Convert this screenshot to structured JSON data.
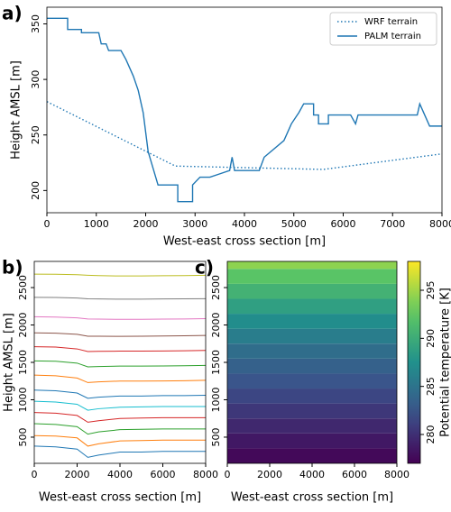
{
  "chart_data": [
    {
      "type": "line",
      "panel_label": "a)",
      "xlabel": "West-east cross section [m]",
      "ylabel": "Height AMSL [m]",
      "xlim": [
        0,
        8000
      ],
      "ylim": [
        180,
        365
      ],
      "xticks": [
        0,
        1000,
        2000,
        3000,
        4000,
        5000,
        6000,
        7000,
        8000
      ],
      "yticks": [
        200,
        250,
        300,
        350
      ],
      "legend": "upper right",
      "series": [
        {
          "name": "WRF terrain",
          "color": "#1f77b4",
          "linestyle": "dotted",
          "x": [
            0,
            2600,
            5600,
            8000
          ],
          "values": [
            280,
            222,
            219,
            233
          ]
        },
        {
          "name": "PALM terrain",
          "color": "#1f77b4",
          "linestyle": "solid",
          "x": [
            0,
            420,
            420,
            700,
            700,
            1050,
            1100,
            1200,
            1250,
            1500,
            1600,
            1750,
            1850,
            1950,
            2050,
            2150,
            2250,
            2650,
            2650,
            2950,
            2950,
            3100,
            3300,
            3500,
            3700,
            3750,
            3800,
            4300,
            4400,
            4800,
            4950,
            5100,
            5200,
            5400,
            5400,
            5500,
            5500,
            5700,
            5700,
            6150,
            6250,
            6300,
            7500,
            7550,
            7650,
            7750,
            8000
          ],
          "values": [
            355,
            355,
            345,
            345,
            342,
            342,
            332,
            332,
            326,
            326,
            318,
            303,
            290,
            270,
            235,
            220,
            205,
            205,
            190,
            190,
            205,
            212,
            212,
            215,
            218,
            230,
            218,
            218,
            230,
            245,
            260,
            270,
            278,
            278,
            268,
            268,
            260,
            260,
            268,
            268,
            260,
            268,
            268,
            278,
            268,
            258,
            258
          ]
        }
      ]
    },
    {
      "type": "line",
      "panel_label": "b)",
      "xlabel": "West-east cross section [m]",
      "ylabel": "Height AMSL [m]",
      "xlim": [
        0,
        8000
      ],
      "ylim": [
        150,
        2850
      ],
      "xticks": [
        0,
        2000,
        4000,
        6000,
        8000
      ],
      "yticks": [
        500,
        1000,
        1500,
        2000,
        2500
      ],
      "x": [
        0,
        1000,
        2000,
        2500,
        3000,
        4000,
        5000,
        6000,
        7000,
        8000
      ],
      "series": [
        {
          "color": "#1f77b4",
          "values": [
            380,
            370,
            340,
            230,
            260,
            300,
            300,
            310,
            310,
            310
          ]
        },
        {
          "color": "#ff7f0e",
          "values": [
            520,
            515,
            490,
            380,
            410,
            450,
            455,
            460,
            460,
            460
          ]
        },
        {
          "color": "#2ca02c",
          "values": [
            680,
            670,
            640,
            540,
            570,
            600,
            605,
            610,
            610,
            610
          ]
        },
        {
          "color": "#d62728",
          "values": [
            830,
            820,
            790,
            700,
            720,
            750,
            755,
            760,
            760,
            760
          ]
        },
        {
          "color": "#17becf",
          "values": [
            980,
            970,
            940,
            860,
            880,
            900,
            905,
            910,
            910,
            910
          ]
        },
        {
          "color": "#1f77b4",
          "values": [
            1130,
            1120,
            1090,
            1020,
            1035,
            1050,
            1050,
            1055,
            1055,
            1060
          ]
        },
        {
          "color": "#ff7f0e",
          "values": [
            1330,
            1320,
            1290,
            1230,
            1240,
            1250,
            1250,
            1252,
            1255,
            1260
          ]
        },
        {
          "color": "#2ca02c",
          "values": [
            1520,
            1515,
            1490,
            1440,
            1445,
            1450,
            1450,
            1452,
            1455,
            1460
          ]
        },
        {
          "color": "#d62728",
          "values": [
            1710,
            1705,
            1680,
            1645,
            1648,
            1650,
            1650,
            1652,
            1655,
            1660
          ]
        },
        {
          "color": "#8c564b",
          "values": [
            1895,
            1890,
            1875,
            1850,
            1850,
            1848,
            1850,
            1852,
            1855,
            1860
          ]
        },
        {
          "color": "#e377c2",
          "values": [
            2110,
            2105,
            2095,
            2080,
            2078,
            2075,
            2075,
            2078,
            2080,
            2085
          ]
        },
        {
          "color": "#7f7f7f",
          "values": [
            2370,
            2368,
            2360,
            2350,
            2348,
            2345,
            2345,
            2348,
            2350,
            2352
          ]
        },
        {
          "color": "#bcbd22",
          "values": [
            2680,
            2678,
            2672,
            2665,
            2660,
            2655,
            2655,
            2658,
            2660,
            2665
          ]
        }
      ]
    },
    {
      "type": "heatmap",
      "panel_label": "c)",
      "xlabel": "West-east cross section [m]",
      "colorbar_label": "Potential temperature [K]",
      "colormap": "viridis",
      "xlim": [
        0,
        8000
      ],
      "ylim": [
        150,
        2850
      ],
      "xticks": [
        0,
        2000,
        4000,
        6000,
        8000
      ],
      "yticks": [
        500,
        1000,
        1500,
        2000,
        2500
      ],
      "clim": [
        277,
        298
      ],
      "cticks": [
        280,
        285,
        290,
        295
      ],
      "y_bins": [
        150,
        350,
        550,
        750,
        950,
        1150,
        1350,
        1550,
        1750,
        1950,
        2150,
        2350,
        2550,
        2750,
        2850
      ],
      "values": [
        277.5,
        278.5,
        279.5,
        280.5,
        281.5,
        282.5,
        283.5,
        284.5,
        285.8,
        287.2,
        288.8,
        290.5,
        292.3,
        294.3
      ]
    }
  ]
}
